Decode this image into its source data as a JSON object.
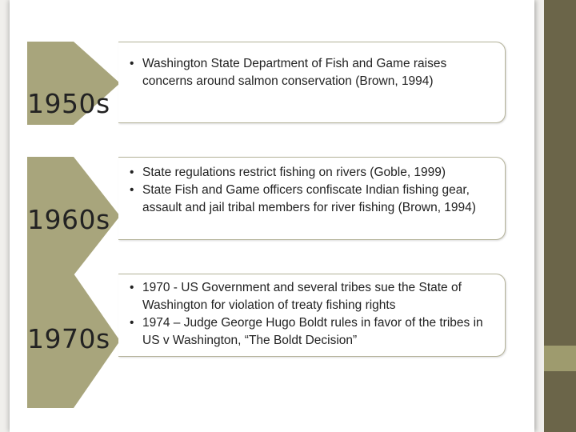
{
  "rows": [
    {
      "decade": "1950s",
      "bullets": [
        "Washington State Department of Fish and Game raises concerns around salmon conservation (Brown, 1994)"
      ]
    },
    {
      "decade": "1960s",
      "bullets": [
        "State regulations restrict fishing on rivers (Goble, 1999)",
        "State Fish and Game officers confiscate Indian fishing gear, assault and jail tribal members for river fishing (Brown, 1994)"
      ]
    },
    {
      "decade": "1970s",
      "bullets": [
        "1970 - US Government and several tribes sue the State of Washington for violation of treaty fishing rights",
        "1974 – Judge George Hugo Boldt rules in favor of the tribes in US v Washington, “The Boldt Decision”"
      ]
    }
  ],
  "colors": {
    "chevron": "#a8a57c",
    "sidebar": "#6b6549",
    "sidebar_accent": "#9e9b6e"
  }
}
